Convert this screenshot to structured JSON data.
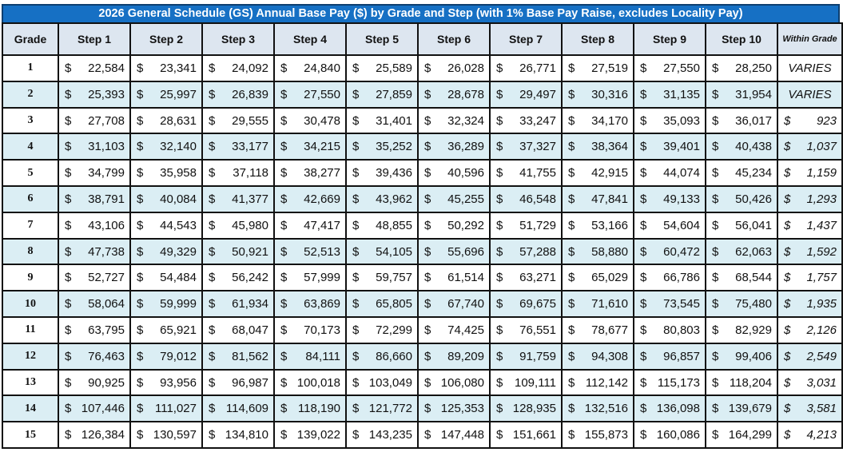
{
  "title": "2026 General Schedule (GS) Annual Base Pay ($) by Grade and Step (with 1% Base Pay Raise, excludes Locality Pay)",
  "headers": [
    "Grade",
    "Step 1",
    "Step 2",
    "Step 3",
    "Step 4",
    "Step 5",
    "Step 6",
    "Step 7",
    "Step 8",
    "Step 9",
    "Step 10",
    "Within Grade"
  ],
  "currency_symbol": "$",
  "colors": {
    "title_bg": "#1670c4",
    "header_bg": "#dde6f0",
    "alt_row_bg": "#dbeef4"
  },
  "rows": [
    {
      "grade": "1",
      "steps": [
        "22,584",
        "23,341",
        "24,092",
        "24,840",
        "25,589",
        "26,028",
        "26,771",
        "27,519",
        "27,550",
        "28,250"
      ],
      "within_grade": "VARIES"
    },
    {
      "grade": "2",
      "steps": [
        "25,393",
        "25,997",
        "26,839",
        "27,550",
        "27,859",
        "28,678",
        "29,497",
        "30,316",
        "31,135",
        "31,954"
      ],
      "within_grade": "VARIES"
    },
    {
      "grade": "3",
      "steps": [
        "27,708",
        "28,631",
        "29,555",
        "30,478",
        "31,401",
        "32,324",
        "33,247",
        "34,170",
        "35,093",
        "36,017"
      ],
      "within_grade": "923"
    },
    {
      "grade": "4",
      "steps": [
        "31,103",
        "32,140",
        "33,177",
        "34,215",
        "35,252",
        "36,289",
        "37,327",
        "38,364",
        "39,401",
        "40,438"
      ],
      "within_grade": "1,037"
    },
    {
      "grade": "5",
      "steps": [
        "34,799",
        "35,958",
        "37,118",
        "38,277",
        "39,436",
        "40,596",
        "41,755",
        "42,915",
        "44,074",
        "45,234"
      ],
      "within_grade": "1,159"
    },
    {
      "grade": "6",
      "steps": [
        "38,791",
        "40,084",
        "41,377",
        "42,669",
        "43,962",
        "45,255",
        "46,548",
        "47,841",
        "49,133",
        "50,426"
      ],
      "within_grade": "1,293"
    },
    {
      "grade": "7",
      "steps": [
        "43,106",
        "44,543",
        "45,980",
        "47,417",
        "48,855",
        "50,292",
        "51,729",
        "53,166",
        "54,604",
        "56,041"
      ],
      "within_grade": "1,437"
    },
    {
      "grade": "8",
      "steps": [
        "47,738",
        "49,329",
        "50,921",
        "52,513",
        "54,105",
        "55,696",
        "57,288",
        "58,880",
        "60,472",
        "62,063"
      ],
      "within_grade": "1,592"
    },
    {
      "grade": "9",
      "steps": [
        "52,727",
        "54,484",
        "56,242",
        "57,999",
        "59,757",
        "61,514",
        "63,271",
        "65,029",
        "66,786",
        "68,544"
      ],
      "within_grade": "1,757"
    },
    {
      "grade": "10",
      "steps": [
        "58,064",
        "59,999",
        "61,934",
        "63,869",
        "65,805",
        "67,740",
        "69,675",
        "71,610",
        "73,545",
        "75,480"
      ],
      "within_grade": "1,935"
    },
    {
      "grade": "11",
      "steps": [
        "63,795",
        "65,921",
        "68,047",
        "70,173",
        "72,299",
        "74,425",
        "76,551",
        "78,677",
        "80,803",
        "82,929"
      ],
      "within_grade": "2,126"
    },
    {
      "grade": "12",
      "steps": [
        "76,463",
        "79,012",
        "81,562",
        "84,111",
        "86,660",
        "89,209",
        "91,759",
        "94,308",
        "96,857",
        "99,406"
      ],
      "within_grade": "2,549"
    },
    {
      "grade": "13",
      "steps": [
        "90,925",
        "93,956",
        "96,987",
        "100,018",
        "103,049",
        "106,080",
        "109,111",
        "112,142",
        "115,173",
        "118,204"
      ],
      "within_grade": "3,031"
    },
    {
      "grade": "14",
      "steps": [
        "107,446",
        "111,027",
        "114,609",
        "118,190",
        "121,772",
        "125,353",
        "128,935",
        "132,516",
        "136,098",
        "139,679"
      ],
      "within_grade": "3,581"
    },
    {
      "grade": "15",
      "steps": [
        "126,384",
        "130,597",
        "134,810",
        "139,022",
        "143,235",
        "147,448",
        "151,661",
        "155,873",
        "160,086",
        "164,299"
      ],
      "within_grade": "4,213"
    }
  ]
}
